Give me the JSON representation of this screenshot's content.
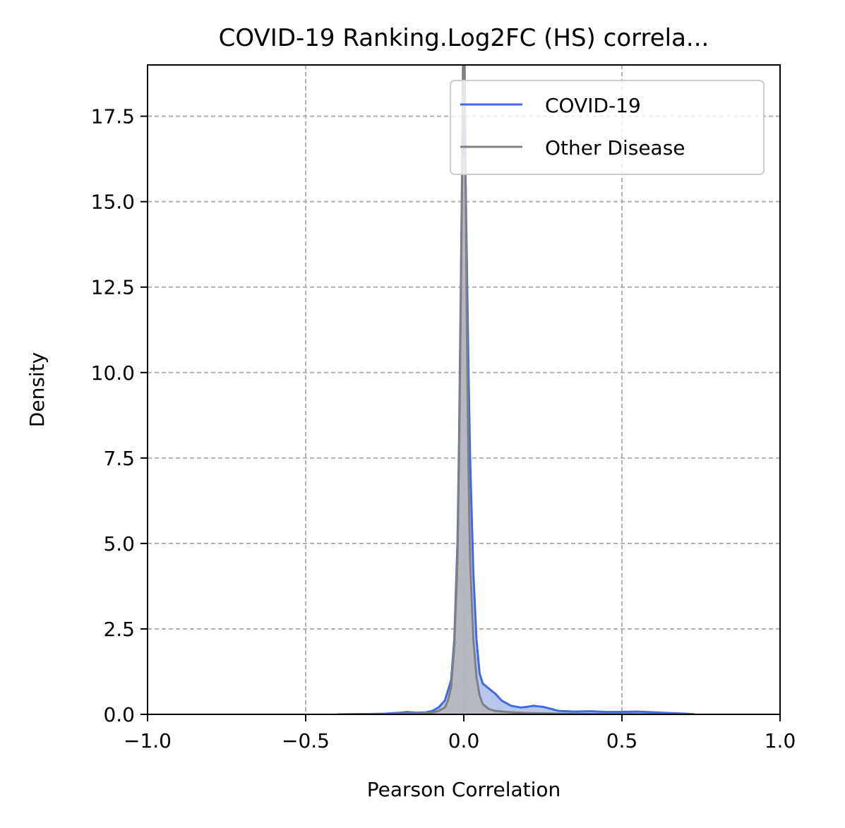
{
  "chart_data": {
    "type": "area",
    "title": "COVID-19 Ranking.Log2FC (HS) correla...",
    "xlabel": "Pearson Correlation",
    "ylabel": "Density",
    "xlim": [
      -1.0,
      1.0
    ],
    "ylim": [
      0,
      19
    ],
    "xticks": [
      -1.0,
      -0.5,
      0.0,
      0.5,
      1.0
    ],
    "xtick_labels": [
      "−1.0",
      "−0.5",
      "0.0",
      "0.5",
      "1.0"
    ],
    "yticks": [
      0,
      2.5,
      5,
      7.5,
      10,
      12.5,
      15,
      17.5
    ],
    "ytick_labels": [
      "0.0",
      "2.5",
      "5.0",
      "7.5",
      "10.0",
      "12.5",
      "15.0",
      "17.5"
    ],
    "grid": true,
    "legend_position": "top-right",
    "series": [
      {
        "name": "COVID-19",
        "color": "#4169e1",
        "fill": "#aebde9",
        "x": [
          -0.4,
          -0.3,
          -0.25,
          -0.2,
          -0.18,
          -0.15,
          -0.12,
          -0.1,
          -0.08,
          -0.06,
          -0.04,
          -0.03,
          -0.02,
          -0.015,
          -0.01,
          -0.005,
          0.0,
          0.005,
          0.01,
          0.015,
          0.02,
          0.03,
          0.04,
          0.05,
          0.06,
          0.08,
          0.1,
          0.12,
          0.15,
          0.18,
          0.2,
          0.22,
          0.25,
          0.28,
          0.3,
          0.35,
          0.4,
          0.45,
          0.5,
          0.55,
          0.6,
          0.65,
          0.7,
          0.73
        ],
        "y": [
          0.0,
          0.01,
          0.02,
          0.05,
          0.07,
          0.05,
          0.06,
          0.1,
          0.2,
          0.4,
          1.0,
          2.2,
          5.0,
          8.0,
          12.0,
          16.0,
          17.5,
          16.0,
          13.0,
          10.0,
          7.5,
          4.2,
          2.2,
          1.2,
          0.9,
          0.75,
          0.6,
          0.4,
          0.25,
          0.2,
          0.22,
          0.25,
          0.22,
          0.15,
          0.1,
          0.08,
          0.09,
          0.07,
          0.07,
          0.08,
          0.06,
          0.04,
          0.02,
          0.0
        ]
      },
      {
        "name": "Other Disease",
        "color": "#808080",
        "fill": "#b4b4b4",
        "x": [
          -0.4,
          -0.25,
          -0.2,
          -0.15,
          -0.1,
          -0.08,
          -0.06,
          -0.05,
          -0.04,
          -0.03,
          -0.02,
          -0.015,
          -0.01,
          -0.005,
          0.0,
          0.005,
          0.01,
          0.015,
          0.02,
          0.03,
          0.04,
          0.05,
          0.06,
          0.08,
          0.1,
          0.15,
          0.2,
          0.3,
          0.4,
          0.5,
          0.6,
          0.7
        ],
        "y": [
          0.0,
          0.01,
          0.02,
          0.03,
          0.05,
          0.1,
          0.2,
          0.4,
          0.8,
          2.0,
          4.5,
          7.5,
          11.5,
          16.5,
          22.0,
          16.5,
          11.0,
          7.0,
          4.5,
          2.2,
          1.1,
          0.55,
          0.3,
          0.15,
          0.1,
          0.06,
          0.04,
          0.02,
          0.01,
          0.005,
          0.0,
          0.0
        ]
      }
    ]
  }
}
